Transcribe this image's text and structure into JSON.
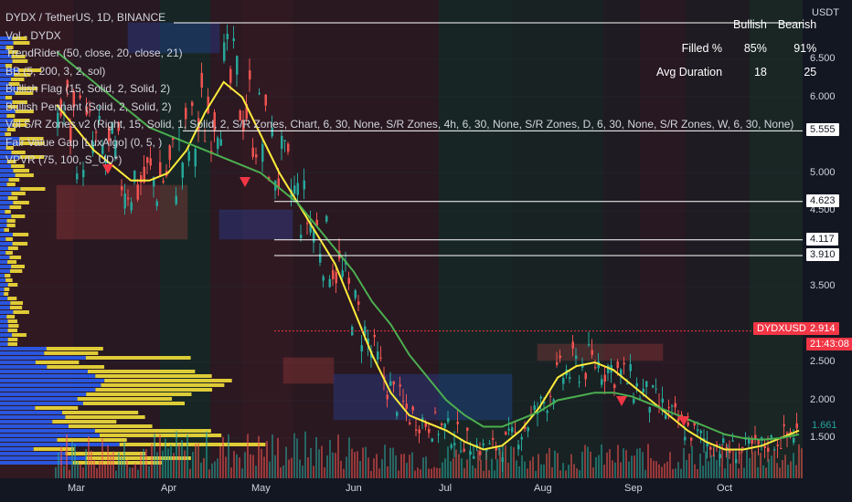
{
  "chart_data": {
    "type": "candlestick",
    "symbol_title": "DYDX / TetherUS, 1D, BINANCE",
    "currency": "USDT",
    "ylim": [
      1.1,
      7.4
    ],
    "y_ticks": [
      {
        "label": "6.500",
        "value": 6.5
      },
      {
        "label": "6.000",
        "value": 6.0
      },
      {
        "label": "5.000",
        "value": 5.0
      },
      {
        "label": "4.500",
        "value": 4.5
      },
      {
        "label": "3.500",
        "value": 3.5
      },
      {
        "label": "2.500",
        "value": 2.5
      },
      {
        "label": "2.000",
        "value": 2.0
      },
      {
        "label": "1.500",
        "value": 1.5
      }
    ],
    "x_ticks": [
      "Mar",
      "Apr",
      "May",
      "Jun",
      "Jul",
      "Aug",
      "Sep",
      "Oct"
    ],
    "price_lines": [
      {
        "label": "5.555",
        "value": 5.555
      },
      {
        "label": "4.623",
        "value": 4.623
      },
      {
        "label": "4.117",
        "value": 4.117
      },
      {
        "label": "3.910",
        "value": 3.91
      }
    ],
    "current": {
      "symbol": "DYDXUSDT",
      "price": "2.914",
      "countdown": "21:43:08",
      "last": "1.661"
    },
    "indicators": [
      "Vol - DYDX",
      "TrendRider (50, close, 20, close, 21)",
      "BB (5, 200, 3, 2, sol)",
      "Bullish Flag (15, Solid, 2, Solid, 2)",
      "Bullish Pennant (Solid, 2, Solid, 2)",
      "Vol S/R Zones v2 (Right, 15, Solid, 1, Solid, 2, S/R Zones, Chart, 6, 30, None, S/R Zones, 4h, 6, 30, None, S/R Zones, D, 6, 30, None, S/R Zones, W, 6, 30, None)",
      "Fair Value Gap [LuxAlgo] (0, 5, )",
      "VPVR (75, 100, S_UD*)"
    ],
    "stats": {
      "headers": [
        "Bullish",
        "Bearish"
      ],
      "rows": [
        {
          "label": "Filled %",
          "bullish": "85%",
          "bearish": "91%"
        },
        {
          "label": "Avg Duration",
          "bullish": "18",
          "bearish": "25"
        }
      ]
    },
    "series": [
      {
        "name": "yellow-ma",
        "color": "#ffeb3b",
        "values": [
          5.9,
          5.6,
          5.3,
          5.1,
          4.9,
          4.9,
          5.0,
          5.3,
          5.8,
          6.2,
          6.0,
          5.5,
          5.0,
          4.6,
          4.2,
          3.8,
          3.2,
          2.6,
          2.1,
          1.8,
          1.7,
          1.6,
          1.45,
          1.35,
          1.4,
          1.6,
          1.9,
          2.3,
          2.45,
          2.5,
          2.4,
          2.2,
          2.0,
          1.8,
          1.6,
          1.45,
          1.35,
          1.35,
          1.4,
          1.5,
          1.6
        ]
      },
      {
        "name": "green-ma",
        "color": "#4caf50",
        "values": [
          6.6,
          6.4,
          6.2,
          6.0,
          5.8,
          5.6,
          5.5,
          5.4,
          5.3,
          5.2,
          5.1,
          5.0,
          4.8,
          4.6,
          4.3,
          4.0,
          3.7,
          3.3,
          3.0,
          2.6,
          2.3,
          2.0,
          1.8,
          1.65,
          1.65,
          1.75,
          1.85,
          2.0,
          2.05,
          2.1,
          2.1,
          2.05,
          1.95,
          1.85,
          1.75,
          1.65,
          1.55,
          1.5,
          1.48,
          1.5,
          1.55
        ]
      }
    ],
    "colors": {
      "up": "#26a69a",
      "down": "#ef5350",
      "background": "#131722",
      "grid": "#1e222d",
      "vpvr": "#ffeb3b",
      "vpvr_blue": "#2962ff"
    }
  }
}
